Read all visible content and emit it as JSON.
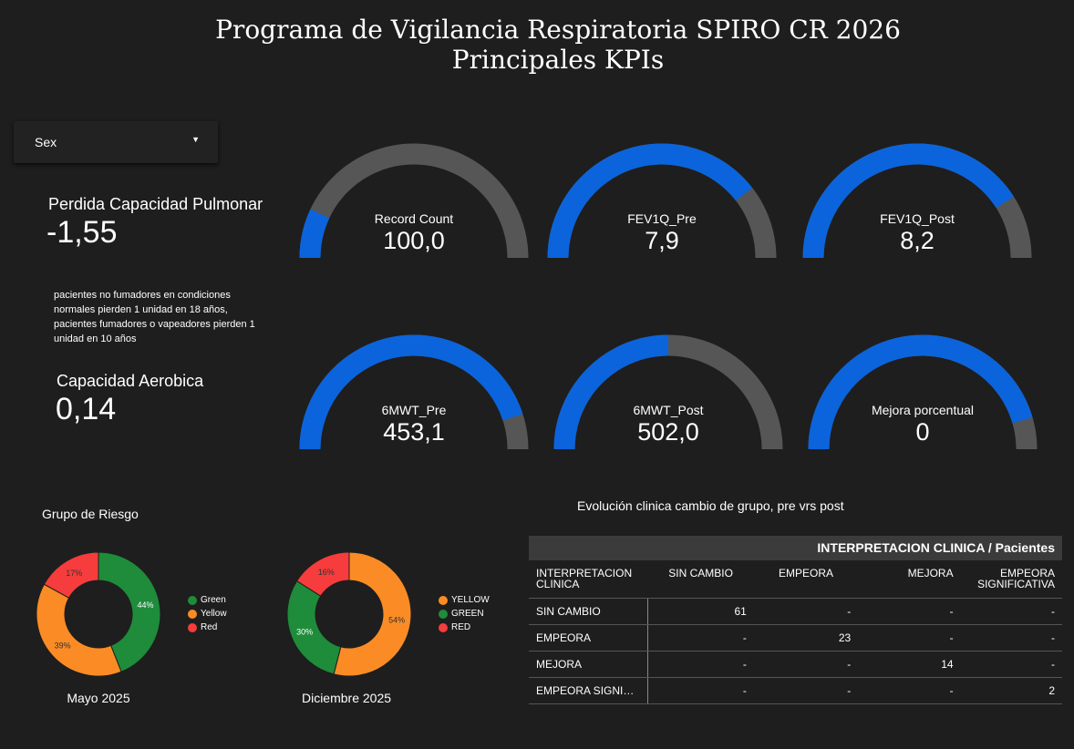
{
  "title": {
    "line1": "Programa de Vigilancia Respiratoria SPIRO CR 2026",
    "line2": "Principales KPIs"
  },
  "filter": {
    "label": "Sex",
    "icon": "caret-down-icon"
  },
  "kpis": {
    "perdida": {
      "label": "Perdida Capacidad Pulmonar",
      "value": "-1,55"
    },
    "note": "pacientes no fumadores en condiciones normales pierden 1 unidad en 18 años, pacientes fumadores o vapeadores pierden 1 unidad en 10 años",
    "aerobica": {
      "label": "Capacidad Aerobica",
      "value": "0,14"
    }
  },
  "colors": {
    "gauge_fill": "#0b64dc",
    "gauge_track": "#565656",
    "green": "#1e8c3a",
    "orange": "#fb8c25",
    "red": "#f63c3c"
  },
  "gauges": [
    {
      "label": "Record Count",
      "value": "100,0",
      "fraction": 0.14
    },
    {
      "label": "FEV1Q_Pre",
      "value": "7,9",
      "fraction": 0.79
    },
    {
      "label": "FEV1Q_Post",
      "value": "8,2",
      "fraction": 0.82
    },
    {
      "label": "6MWT_Pre",
      "value": "453,1",
      "fraction": 0.9
    },
    {
      "label": "6MWT_Post",
      "value": "502,0",
      "fraction": 0.5
    },
    {
      "label": "Mejora porcentual",
      "value": "0",
      "fraction": 0.91
    }
  ],
  "risk": {
    "title": "Grupo de Riesgo"
  },
  "chart_data": [
    {
      "type": "pie",
      "title": "Mayo 2025",
      "categories": [
        "Green",
        "Yellow",
        "Red"
      ],
      "values": [
        44,
        39,
        17
      ],
      "labels": [
        "44%",
        "39%",
        "17%"
      ],
      "legend": "right"
    },
    {
      "type": "pie",
      "title": "Diciembre 2025",
      "categories": [
        "YELLOW",
        "GREEN",
        "RED"
      ],
      "values": [
        54,
        30,
        16
      ],
      "labels": [
        "54%",
        "30%",
        "16%"
      ],
      "legend": "right"
    }
  ],
  "table": {
    "caption": "Evolución clinica cambio de grupo, pre vrs post",
    "header": "INTERPRETACION CLINICA / Pacientes",
    "row_header_title": "INTERPRETACION CLINICA",
    "columns": [
      "SIN CAMBIO",
      "EMPEORA",
      "MEJORA",
      "EMPEORA SIGNIFICATIVA"
    ],
    "rows": [
      {
        "label": "SIN CAMBIO",
        "cells": [
          "61",
          "-",
          "-",
          "-"
        ]
      },
      {
        "label": "EMPEORA",
        "cells": [
          "-",
          "23",
          "-",
          "-"
        ]
      },
      {
        "label": "MEJORA",
        "cells": [
          "-",
          "-",
          "14",
          "-"
        ]
      },
      {
        "label": "EMPEORA SIGNI…",
        "cells": [
          "-",
          "-",
          "-",
          "2"
        ]
      }
    ]
  }
}
